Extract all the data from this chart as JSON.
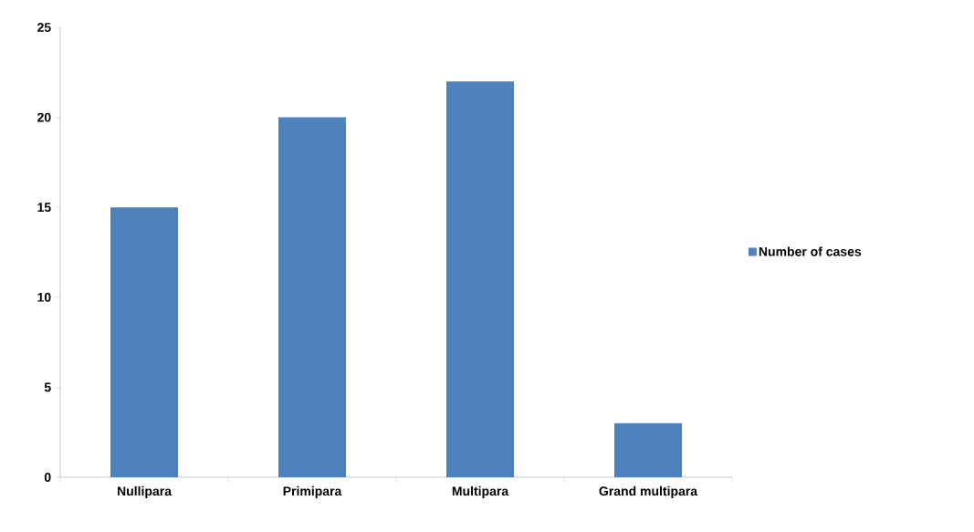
{
  "chart_data": {
    "type": "bar",
    "categories": [
      "Nullipara",
      "Primipara",
      "Multipara",
      "Grand multipara"
    ],
    "series": [
      {
        "name": "Number of cases",
        "color": "#4f81bd",
        "values": [
          15,
          20,
          22,
          3
        ]
      }
    ],
    "ylim": [
      0,
      25
    ],
    "yticks": [
      0,
      5,
      10,
      15,
      20,
      25
    ],
    "grid": false,
    "legend": "right"
  }
}
